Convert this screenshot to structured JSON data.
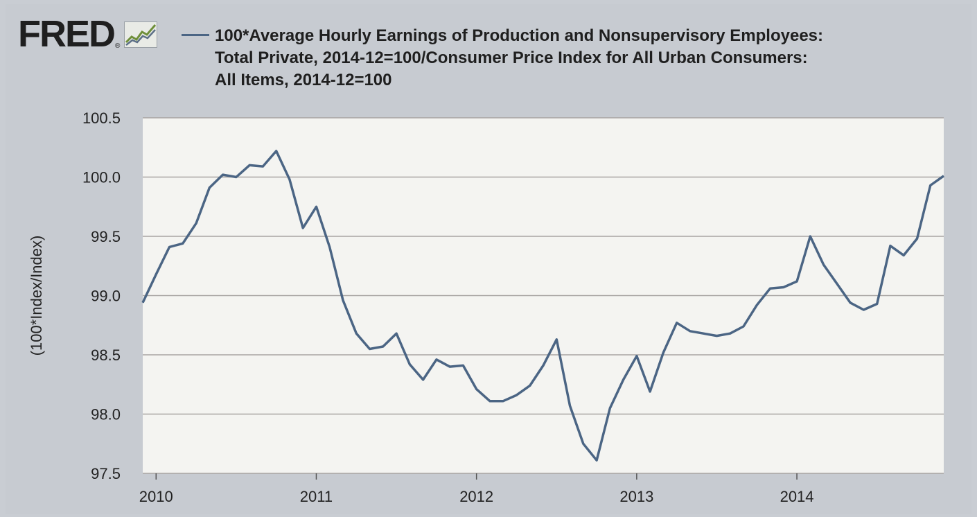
{
  "header": {
    "logo_text": "FRED",
    "logo_reg": "®",
    "title_lines": [
      "100*Average Hourly Earnings of Production and Nonsupervisory Employees:",
      "Total Private, 2014-12=100/Consumer Price Index for All Urban Consumers:",
      "All Items, 2014-12=100"
    ]
  },
  "colors": {
    "line": "#4b6584",
    "plot_bg": "#f4f4f1",
    "grid": "#a8a4a2",
    "background": "#c9cdd3"
  },
  "chart_data": {
    "type": "line",
    "title": "100*Average Hourly Earnings of Production and Nonsupervisory Employees: Total Private, 2014-12=100/Consumer Price Index for All Urban Consumers: All Items, 2014-12=100",
    "xlabel": "",
    "ylabel": "(100*Index/Index)",
    "x_start": "2009-12",
    "x_ticks": [
      "2010",
      "2011",
      "2012",
      "2013",
      "2014"
    ],
    "ylim": [
      97.5,
      100.5
    ],
    "y_ticks": [
      "100.5",
      "100.0",
      "99.5",
      "99.0",
      "98.5",
      "98.0",
      "97.5"
    ],
    "grid": true,
    "series": [
      {
        "name": "",
        "x": [
          "2009-12",
          "2010-01",
          "2010-02",
          "2010-03",
          "2010-04",
          "2010-05",
          "2010-06",
          "2010-07",
          "2010-08",
          "2010-09",
          "2010-10",
          "2010-11",
          "2010-12",
          "2011-01",
          "2011-02",
          "2011-03",
          "2011-04",
          "2011-05",
          "2011-06",
          "2011-07",
          "2011-08",
          "2011-09",
          "2011-10",
          "2011-11",
          "2011-12",
          "2012-01",
          "2012-02",
          "2012-03",
          "2012-04",
          "2012-05",
          "2012-06",
          "2012-07",
          "2012-08",
          "2012-09",
          "2012-10",
          "2012-11",
          "2012-12",
          "2013-01",
          "2013-02",
          "2013-03",
          "2013-04",
          "2013-05",
          "2013-06",
          "2013-07",
          "2013-08",
          "2013-09",
          "2013-10",
          "2013-11",
          "2013-12",
          "2014-01",
          "2014-02",
          "2014-03",
          "2014-04",
          "2014-05",
          "2014-06",
          "2014-07",
          "2014-08",
          "2014-09",
          "2014-10",
          "2014-11",
          "2014-12"
        ],
        "values": [
          98.94,
          99.18,
          99.41,
          99.44,
          99.61,
          99.91,
          100.02,
          100.0,
          100.1,
          100.09,
          100.22,
          99.98,
          99.57,
          99.75,
          99.41,
          98.96,
          98.68,
          98.55,
          98.57,
          98.68,
          98.42,
          98.29,
          98.46,
          98.4,
          98.41,
          98.21,
          98.11,
          98.11,
          98.16,
          98.24,
          98.41,
          98.63,
          98.07,
          97.75,
          97.61,
          98.05,
          98.29,
          98.49,
          98.19,
          98.52,
          98.77,
          98.7,
          98.68,
          98.66,
          98.68,
          98.74,
          98.92,
          99.06,
          99.07,
          99.12,
          99.5,
          99.26,
          99.1,
          98.94,
          98.88,
          98.93,
          99.42,
          99.34,
          99.48,
          99.93,
          100.01
        ]
      }
    ]
  }
}
